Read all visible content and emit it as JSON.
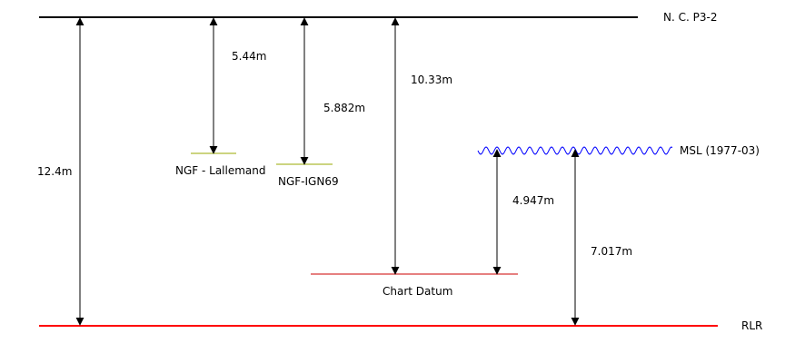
{
  "levels": {
    "nc": {
      "label": "N. C. P3-2"
    },
    "ngf_lallemand": {
      "label": "NGF - Lallemand"
    },
    "ngf_ign69": {
      "label": "NGF-IGN69"
    },
    "chart_datum": {
      "label": "Chart Datum"
    },
    "msl": {
      "label": "MSL (1977-03)"
    },
    "rlr": {
      "label": "RLR"
    }
  },
  "measurements": {
    "nc_to_rlr": "12.4m",
    "nc_to_lallemand": "5.44m",
    "nc_to_ign69": "5.882m",
    "nc_to_chart_datum": "10.33m",
    "msl_to_chart_datum": "4.947m",
    "msl_to_rlr": "7.017m"
  },
  "colors": {
    "nc_line": "#000000",
    "rlr_line": "#ff0000",
    "chart_datum_line": "#cc0000",
    "ngf_lines": "#99aa00",
    "msl_wave": "#0000ff",
    "arrows": "#000000"
  }
}
